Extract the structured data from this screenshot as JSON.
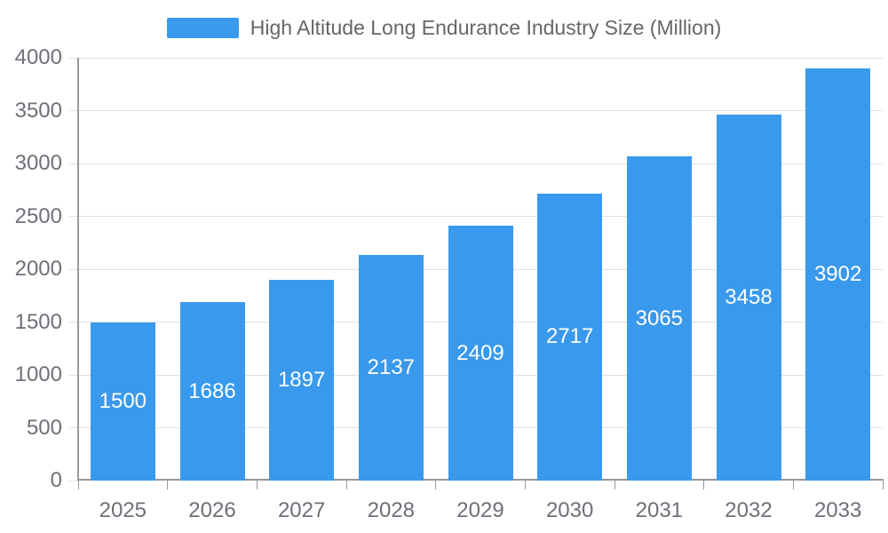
{
  "chart_data": {
    "type": "bar",
    "title": "High Altitude Long Endurance Industry Size (Million)",
    "categories": [
      "2025",
      "2026",
      "2027",
      "2028",
      "2029",
      "2030",
      "2031",
      "2032",
      "2033"
    ],
    "values": [
      1500,
      1686,
      1897,
      2137,
      2409,
      2717,
      3065,
      3458,
      3902
    ],
    "xlabel": "",
    "ylabel": "",
    "ylim": [
      0,
      4000
    ],
    "yticks": [
      0,
      500,
      1000,
      1500,
      2000,
      2500,
      3000,
      3500,
      4000
    ],
    "grid": true,
    "legend_position": "top-center",
    "bar_label_position": "inside-center",
    "colors": {
      "bar": "#3999ED",
      "bar_label": "#FFFFFF",
      "axis_text": "#6E7079",
      "legend_text": "#666666",
      "grid_line": "#E0E0E0",
      "axis_line": "#999999",
      "background": "#FFFFFF"
    }
  }
}
